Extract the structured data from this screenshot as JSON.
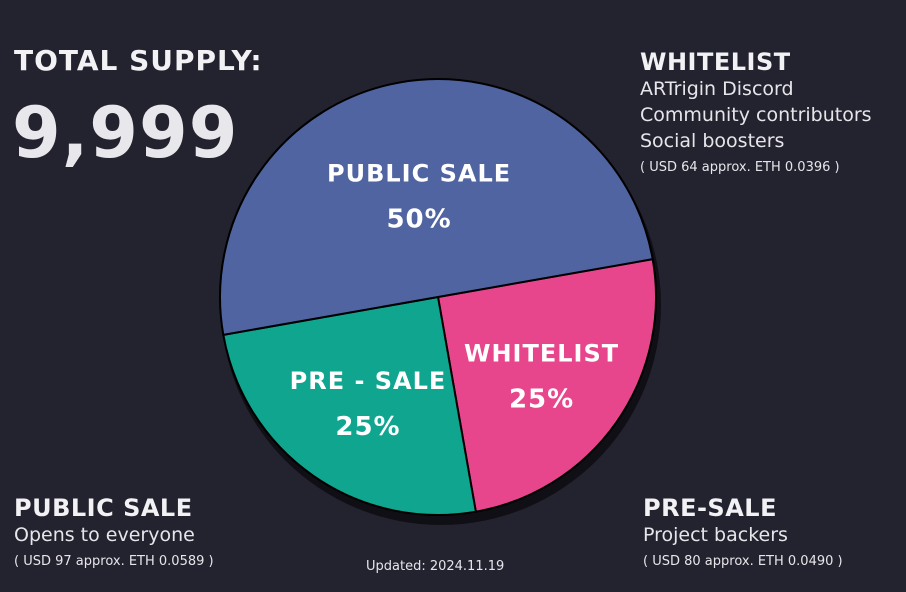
{
  "supply": {
    "label": "TOTAL SUPPLY:",
    "value": "9,999"
  },
  "chart_data": {
    "type": "pie",
    "categories": [
      "WHITELIST",
      "PRE - SALE",
      "PUBLIC SALE"
    ],
    "values": [
      25,
      25,
      50
    ],
    "value_labels": [
      "25%",
      "25%",
      "50%"
    ],
    "colors": [
      "#e8468c",
      "#0fa58f",
      "#4f64a0"
    ],
    "outline_color": "#000000"
  },
  "whitelist": {
    "title": "WHITELIST",
    "lines": [
      "ARTrigin Discord",
      "Community contributors",
      "Social boosters"
    ],
    "price": "( USD 64 approx. ETH 0.0396 )"
  },
  "presale": {
    "title": "PRE-SALE",
    "lines": [
      "Project backers"
    ],
    "price": "( USD 80 approx. ETH 0.0490 )"
  },
  "publicsale": {
    "title": "PUBLIC SALE",
    "lines": [
      "Opens to everyone"
    ],
    "price": "( USD 97 approx. ETH 0.0589 )"
  },
  "updated": "Updated: 2024.11.19"
}
